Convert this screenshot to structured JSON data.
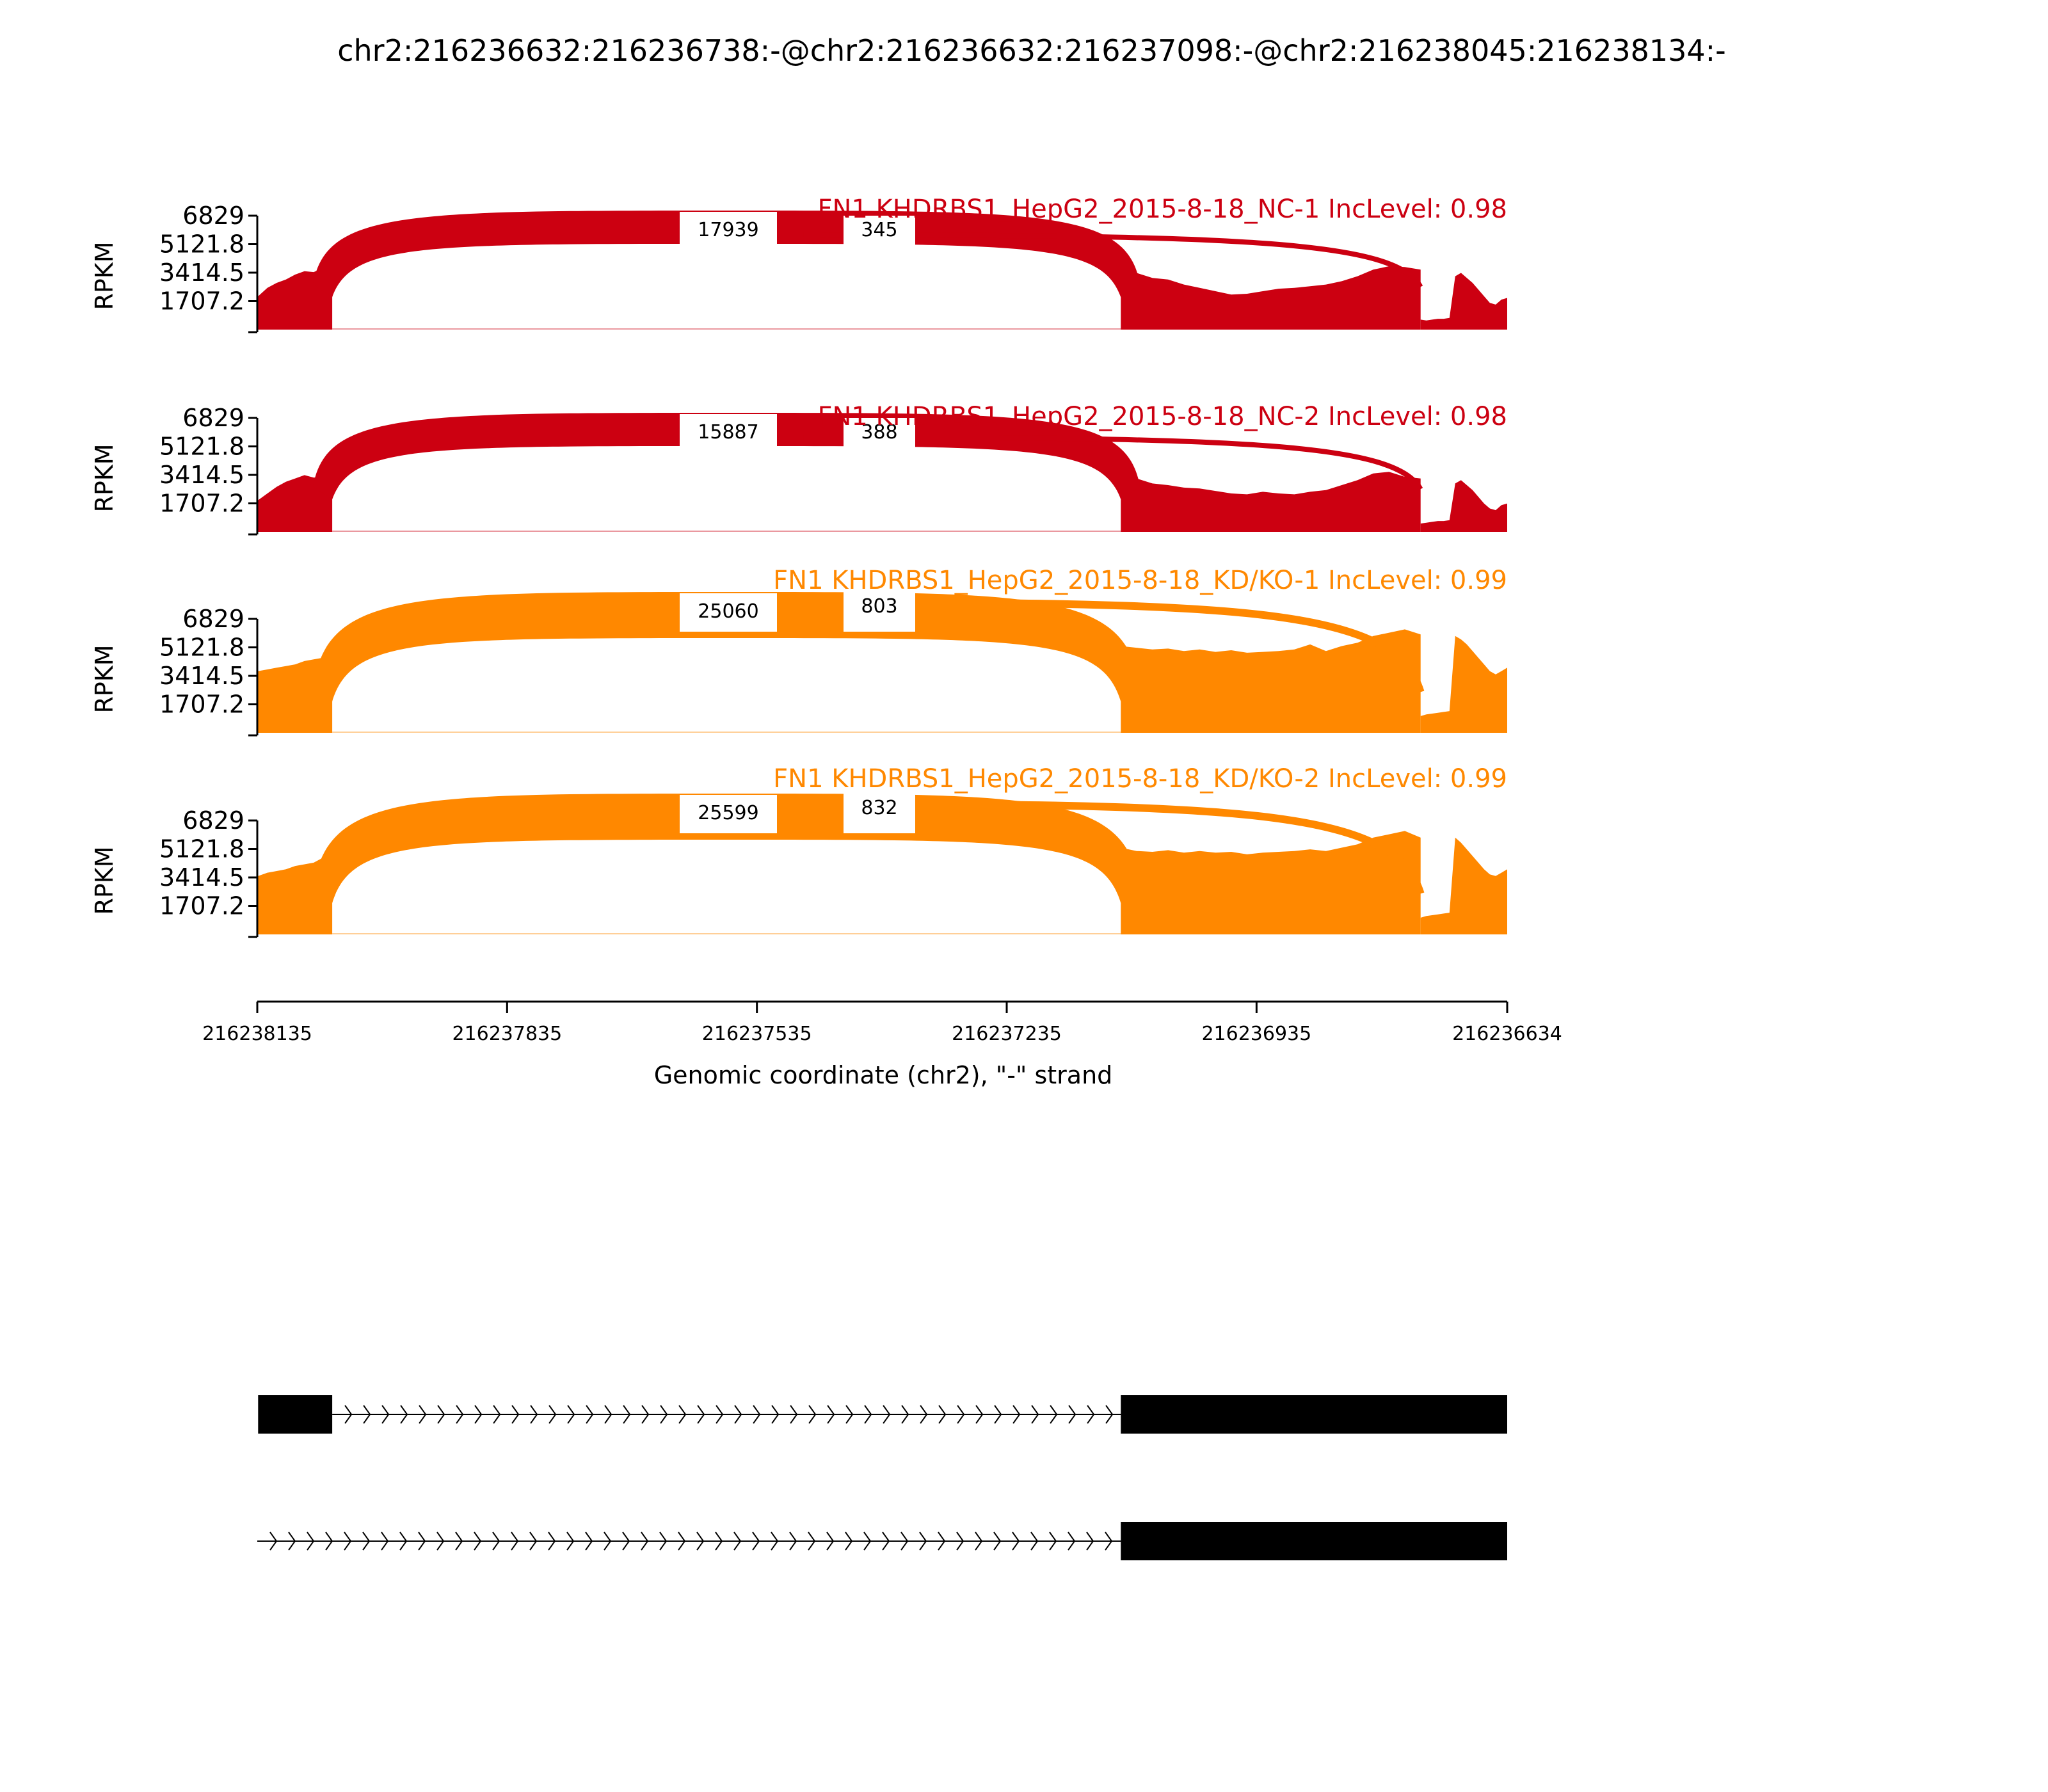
{
  "chart_data": {
    "type": "sashimi",
    "title": "chr2:216236632:216236738:-@chr2:216236632:216237098:-@chr2:216238045:216238134:-",
    "ylabel": "RPKM",
    "xlabel": "Genomic coordinate (chr2), \"-\" strand",
    "ylim": [
      0,
      6829
    ],
    "y_ticks": [
      "6829",
      "5121.8",
      "3414.5",
      "1707.2"
    ],
    "y_tick_values": [
      6829,
      5121.8,
      3414.5,
      1707.2
    ],
    "x_range": [
      216238135,
      216236634
    ],
    "x_ticks": [
      "216238135",
      "216237835",
      "216237535",
      "216237235",
      "216236935",
      "216236634"
    ],
    "x_tick_values": [
      216238135,
      216237835,
      216237535,
      216237235,
      216236935,
      216236634
    ],
    "exons": [
      {
        "start": 216238134,
        "end": 216238045
      },
      {
        "start": 216237098,
        "end": 216236738
      },
      {
        "start": 216236738,
        "end": 216236634
      }
    ],
    "introns": [
      {
        "from": 216238045,
        "to": 216237098
      },
      {
        "from": 216238045,
        "to": 216236738
      }
    ],
    "tracks": [
      {
        "label": "FN1 KHDRBS1_HepG2_2015-8-18_NC-1 IncLevel: 0.98",
        "color": "#cc0011",
        "junction_counts": [
          "17939",
          "345"
        ],
        "coverage": {
          "exon1": [
            2000,
            2500,
            2800,
            3000,
            3300,
            3500,
            3450,
            3700,
            4600
          ],
          "exon2": [
            3600,
            3400,
            3100,
            3000,
            2700,
            2500,
            2300,
            2100,
            2150,
            2300,
            2450,
            2500,
            2600,
            2700,
            2900,
            3200,
            3600,
            3800,
            3750,
            3600
          ],
          "exon3": [
            600,
            550,
            600,
            650,
            650,
            700,
            3200,
            3400,
            3100,
            2800,
            2400,
            2000,
            1600,
            1500,
            1800,
            1900
          ]
        }
      },
      {
        "label": "FN1 KHDRBS1_HepG2_2015-8-18_NC-2 IncLevel: 0.98",
        "color": "#cc0011",
        "junction_counts": [
          "15887",
          "388"
        ],
        "coverage": {
          "exon1": [
            1900,
            2300,
            2700,
            3000,
            3200,
            3400,
            3250,
            3300,
            4500
          ],
          "exon2": [
            3400,
            3200,
            2900,
            2800,
            2650,
            2600,
            2450,
            2300,
            2250,
            2400,
            2300,
            2250,
            2400,
            2500,
            2800,
            3100,
            3500,
            3600,
            3300,
            3200
          ],
          "exon3": [
            500,
            550,
            600,
            650,
            650,
            700,
            2900,
            3100,
            2800,
            2500,
            2100,
            1700,
            1400,
            1300,
            1600,
            1700
          ]
        }
      },
      {
        "label": "FN1 KHDRBS1_HepG2_2015-8-18_KD/KO-1 IncLevel: 0.99",
        "color": "#ff8800",
        "junction_counts": [
          "25060",
          "803"
        ],
        "coverage": {
          "exon1": [
            3700,
            3800,
            3900,
            4000,
            4100,
            4300,
            4400,
            4500,
            5500
          ],
          "exon2": [
            5200,
            5100,
            5000,
            5050,
            4900,
            5000,
            4850,
            4950,
            4800,
            4850,
            4900,
            5000,
            5300,
            4900,
            5200,
            5400,
            5800,
            6000,
            6200,
            5900
          ],
          "exon3": [
            1000,
            1100,
            1150,
            1200,
            1250,
            1300,
            5800,
            5600,
            5300,
            4900,
            4500,
            4100,
            3700,
            3500,
            3700,
            3900
          ]
        }
      },
      {
        "label": "FN1 KHDRBS1_HepG2_2015-8-18_KD/KO-2 IncLevel: 0.99",
        "color": "#ff8800",
        "junction_counts": [
          "25599",
          "832"
        ],
        "coverage": {
          "exon1": [
            3500,
            3700,
            3800,
            3900,
            4100,
            4200,
            4300,
            4600,
            5400
          ],
          "exon2": [
            5200,
            5000,
            4950,
            5050,
            4900,
            5000,
            4900,
            4950,
            4800,
            4900,
            4950,
            5000,
            5100,
            5000,
            5200,
            5400,
            5800,
            6000,
            6200,
            5800
          ],
          "exon3": [
            1000,
            1100,
            1150,
            1200,
            1250,
            1300,
            5800,
            5500,
            5100,
            4700,
            4300,
            3900,
            3600,
            3500,
            3700,
            3900
          ]
        }
      }
    ],
    "transcripts": [
      {
        "exons": [
          [
            216238134,
            216238045
          ],
          [
            216237098,
            216236634
          ]
        ]
      },
      {
        "exons": [
          [
            216237098,
            216236634
          ]
        ]
      }
    ]
  }
}
